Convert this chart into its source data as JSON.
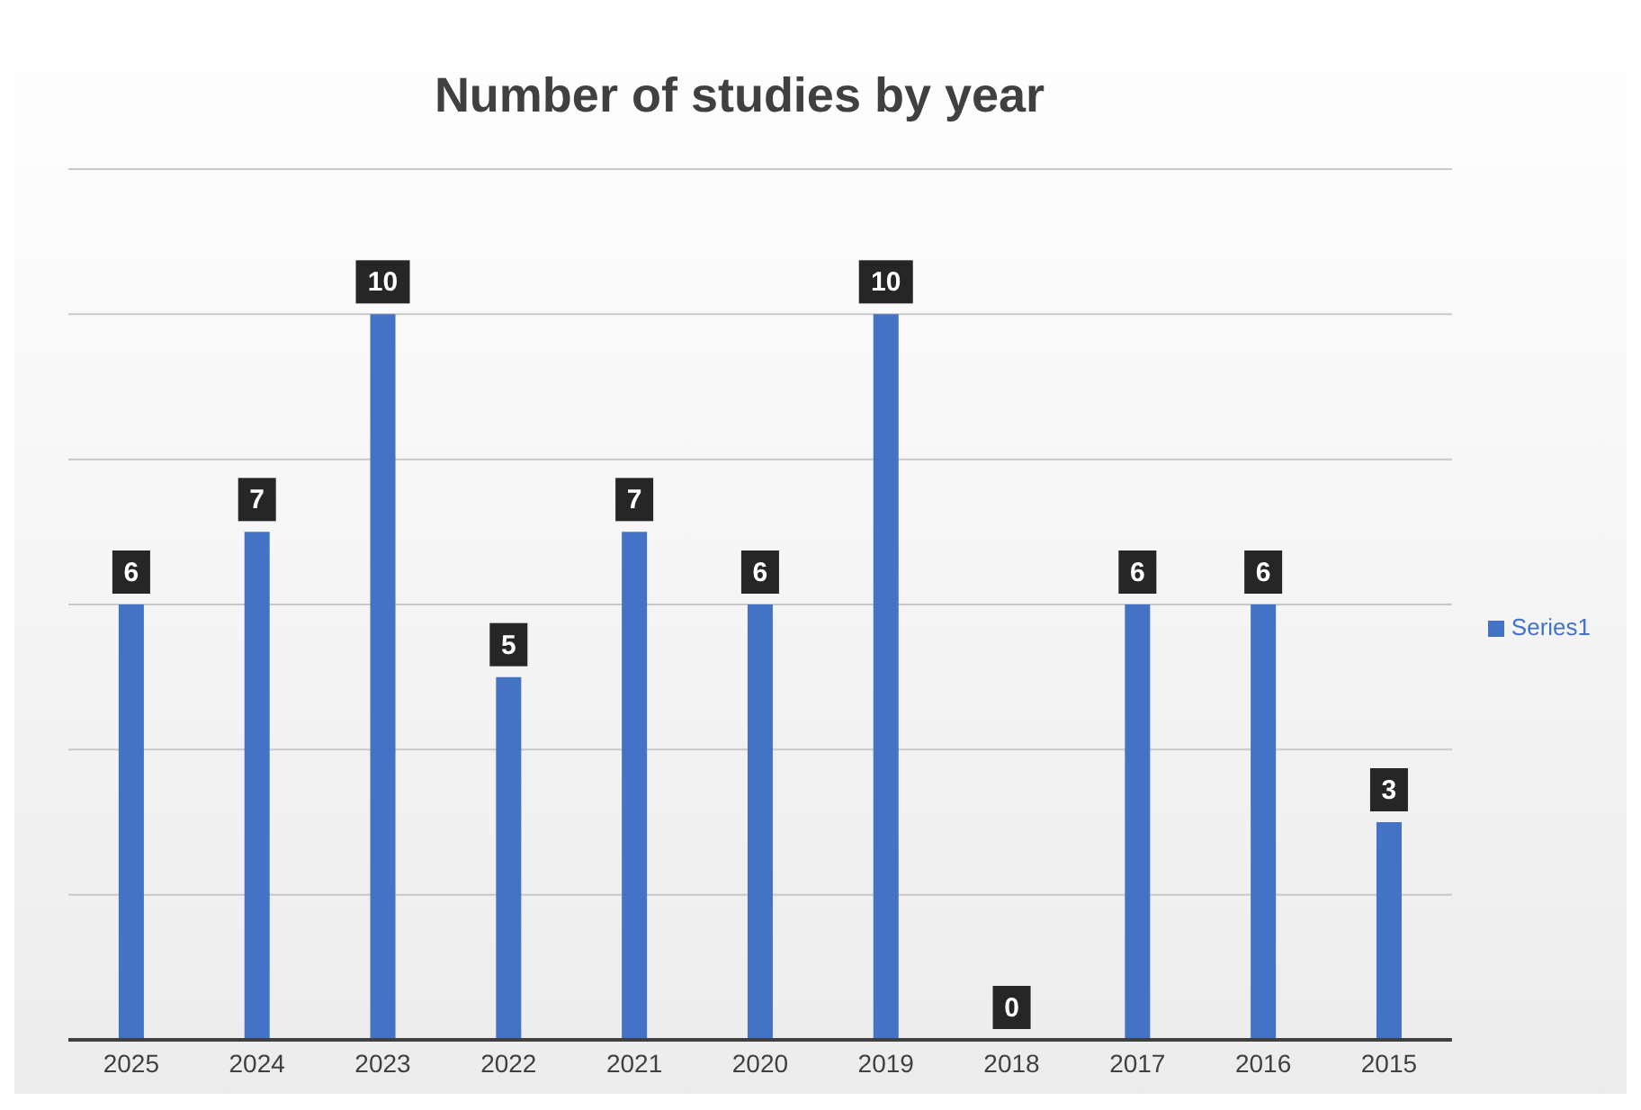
{
  "chart_data": {
    "type": "bar",
    "title": "Number of studies by year",
    "categories": [
      "2025",
      "2024",
      "2023",
      "2022",
      "2021",
      "2020",
      "2019",
      "2018",
      "2017",
      "2016",
      "2015"
    ],
    "series": [
      {
        "name": "Series1",
        "color": "#4472c4",
        "values": [
          6,
          7,
          10,
          5,
          7,
          6,
          10,
          0,
          6,
          6,
          3
        ]
      }
    ],
    "ylim": [
      0,
      12
    ],
    "tick_labels": "x",
    "grid": "y",
    "legend": "right",
    "data_labels": true
  }
}
